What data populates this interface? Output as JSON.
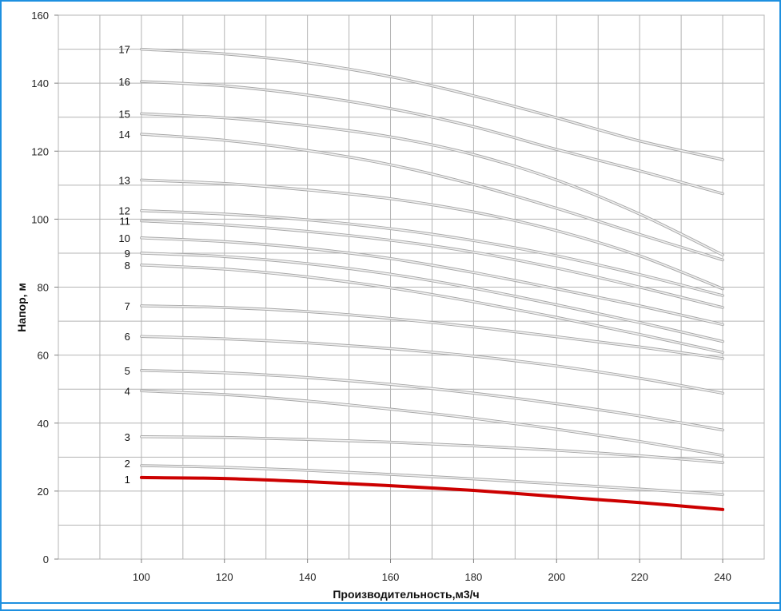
{
  "chart_data": {
    "type": "line",
    "title": "",
    "xlabel": "Производительность,м3/ч",
    "ylabel": "Напор, м",
    "xlim": [
      80,
      250
    ],
    "ylim": [
      0,
      160
    ],
    "grid": true,
    "x_ticks": [
      "100",
      "120",
      "140",
      "160",
      "180",
      "200",
      "220",
      "240"
    ],
    "y_ticks": [
      "0",
      "20",
      "40",
      "60",
      "80",
      "100",
      "120",
      "140",
      "160"
    ],
    "x": [
      100,
      120,
      140,
      160,
      180,
      200,
      220,
      240
    ],
    "series": [
      {
        "name": "1",
        "color": "#cc0000",
        "values": [
          24,
          23.7,
          22.8,
          21.6,
          20.2,
          18.4,
          16.6,
          14.6
        ]
      },
      {
        "name": "2",
        "color": "#c0c0c0",
        "values": [
          27.5,
          27.0,
          26.1,
          24.9,
          23.6,
          22.1,
          20.6,
          19.0
        ]
      },
      {
        "name": "3",
        "color": "#c0c0c0",
        "values": [
          36,
          35.8,
          35.2,
          34.4,
          33.3,
          32.0,
          30.4,
          28.4
        ]
      },
      {
        "name": "4",
        "color": "#c0c0c0",
        "values": [
          49.5,
          48.4,
          46.5,
          44.1,
          41.4,
          38.2,
          34.6,
          30.5
        ]
      },
      {
        "name": "5",
        "color": "#c0c0c0",
        "values": [
          55.5,
          54.8,
          53.4,
          51.4,
          48.8,
          45.7,
          42.1,
          38.0
        ]
      },
      {
        "name": "6",
        "color": "#c0c0c0",
        "values": [
          65.5,
          64.8,
          63.6,
          61.9,
          59.7,
          56.8,
          53.2,
          48.8
        ]
      },
      {
        "name": "7",
        "color": "#c0c0c0",
        "values": [
          74.5,
          74.0,
          72.8,
          70.8,
          68.3,
          65.4,
          62.4,
          59.0
        ]
      },
      {
        "name": "8",
        "color": "#c0c0c0",
        "values": [
          86.5,
          85.3,
          83.0,
          79.8,
          75.7,
          71.1,
          66.1,
          60.8
        ]
      },
      {
        "name": "9",
        "color": "#c0c0c0",
        "values": [
          90,
          89.0,
          86.9,
          83.8,
          79.7,
          74.8,
          69.6,
          64.0
        ]
      },
      {
        "name": "10",
        "color": "#c0c0c0",
        "values": [
          94.5,
          93.4,
          91.4,
          88.4,
          84.3,
          79.5,
          74.5,
          69.0
        ]
      },
      {
        "name": "11",
        "color": "#c0c0c0",
        "values": [
          99.5,
          98.3,
          96.4,
          93.8,
          90.3,
          85.6,
          80.0,
          74.0
        ]
      },
      {
        "name": "12",
        "color": "#c0c0c0",
        "values": [
          102.5,
          101.5,
          99.8,
          97.2,
          93.7,
          89.2,
          83.7,
          77.5
        ]
      },
      {
        "name": "13",
        "color": "#c0c0c0",
        "values": [
          111.5,
          110.5,
          108.6,
          106.0,
          102.1,
          96.6,
          89.2,
          79.5
        ]
      },
      {
        "name": "14",
        "color": "#c0c0c0",
        "values": [
          125,
          123.2,
          120.2,
          116.0,
          110.2,
          103.2,
          95.5,
          88.0
        ]
      },
      {
        "name": "15",
        "color": "#c0c0c0",
        "values": [
          131,
          129.8,
          127.5,
          124.2,
          119.0,
          111.5,
          101.5,
          89.5
        ]
      },
      {
        "name": "16",
        "color": "#c0c0c0",
        "values": [
          140.5,
          139.2,
          136.5,
          132.5,
          127.2,
          120.5,
          114.2,
          107.5
        ]
      },
      {
        "name": "17",
        "color": "#c0c0c0",
        "values": [
          150,
          148.6,
          146.0,
          141.9,
          136.3,
          129.8,
          123.0,
          117.5
        ]
      }
    ]
  },
  "style": {
    "border_color": "#1e90e0",
    "grid_color": "#b4b4b4",
    "axis_color": "#808080"
  }
}
